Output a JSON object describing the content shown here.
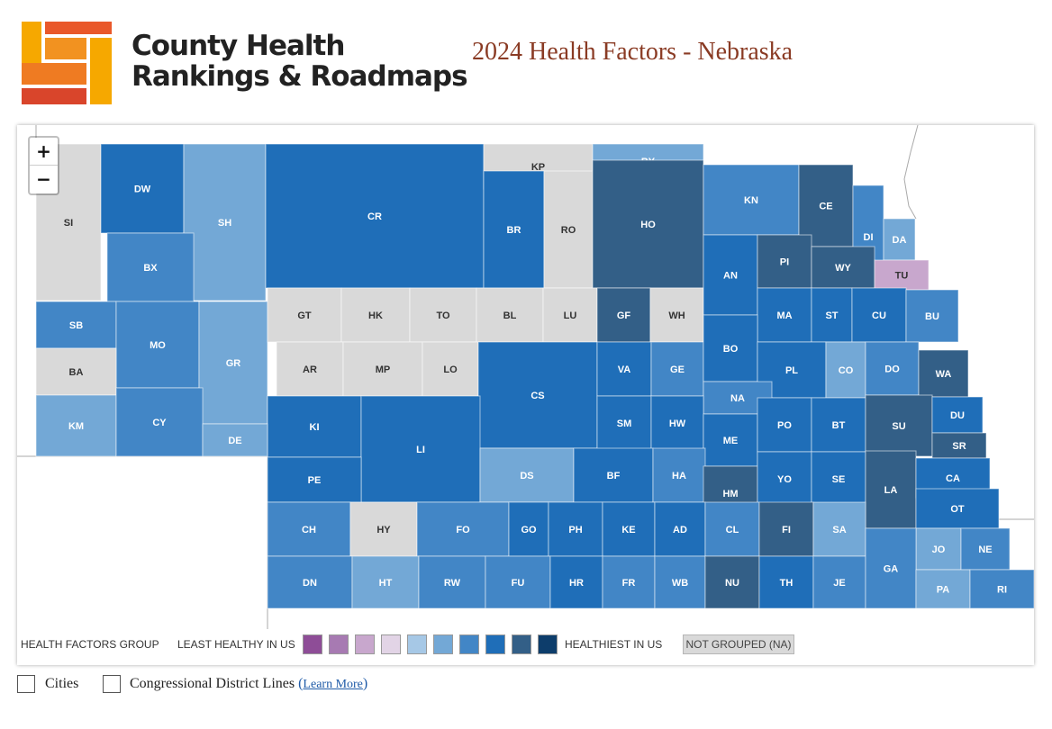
{
  "header": {
    "logo_line1": "County Health",
    "logo_line2": "Rankings & Roadmaps",
    "title": "2024 Health Factors - Nebraska"
  },
  "colors": {
    "healthiest": "#0d3d6b",
    "c9": "#335f87",
    "c8": "#1f6eb8",
    "c7": "#4286c6",
    "c6": "#73a8d6",
    "c5": "#a6c8e6",
    "l4": "#e2d4e6",
    "l3": "#c8a7cd",
    "l2": "#a77ab2",
    "least": "#8e4d97",
    "na": "#d9d9d9"
  },
  "map": {
    "zoom_in": "+",
    "zoom_out": "−",
    "counties": [
      {
        "abbr": "SI",
        "group": "na"
      },
      {
        "abbr": "DW",
        "group": "c8"
      },
      {
        "abbr": "SH",
        "group": "c6"
      },
      {
        "abbr": "CR",
        "group": "c8"
      },
      {
        "abbr": "KP",
        "group": "na"
      },
      {
        "abbr": "BY",
        "group": "c6"
      },
      {
        "abbr": "BR",
        "group": "c8"
      },
      {
        "abbr": "RO",
        "group": "na"
      },
      {
        "abbr": "HO",
        "group": "c9"
      },
      {
        "abbr": "KN",
        "group": "c7"
      },
      {
        "abbr": "CE",
        "group": "c9"
      },
      {
        "abbr": "DI",
        "group": "c7"
      },
      {
        "abbr": "DA",
        "group": "c6"
      },
      {
        "abbr": "BX",
        "group": "c7"
      },
      {
        "abbr": "SB",
        "group": "c7"
      },
      {
        "abbr": "MO",
        "group": "c7"
      },
      {
        "abbr": "GR",
        "group": "c6"
      },
      {
        "abbr": "GT",
        "group": "na"
      },
      {
        "abbr": "HK",
        "group": "na"
      },
      {
        "abbr": "TO",
        "group": "na"
      },
      {
        "abbr": "BL",
        "group": "na"
      },
      {
        "abbr": "LU",
        "group": "na"
      },
      {
        "abbr": "GF",
        "group": "c9"
      },
      {
        "abbr": "WH",
        "group": "na"
      },
      {
        "abbr": "AN",
        "group": "c8"
      },
      {
        "abbr": "PI",
        "group": "c9"
      },
      {
        "abbr": "WY",
        "group": "c9"
      },
      {
        "abbr": "TU",
        "group": "l3"
      },
      {
        "abbr": "MA",
        "group": "c8"
      },
      {
        "abbr": "ST",
        "group": "c8"
      },
      {
        "abbr": "CU",
        "group": "c8"
      },
      {
        "abbr": "BU",
        "group": "c7"
      },
      {
        "abbr": "BA",
        "group": "na"
      },
      {
        "abbr": "AR",
        "group": "na"
      },
      {
        "abbr": "MP",
        "group": "na"
      },
      {
        "abbr": "LO",
        "group": "na"
      },
      {
        "abbr": "CS",
        "group": "c8"
      },
      {
        "abbr": "VA",
        "group": "c8"
      },
      {
        "abbr": "GE",
        "group": "c7"
      },
      {
        "abbr": "BO",
        "group": "c8"
      },
      {
        "abbr": "PL",
        "group": "c8"
      },
      {
        "abbr": "CO",
        "group": "c6"
      },
      {
        "abbr": "DO",
        "group": "c7"
      },
      {
        "abbr": "WA",
        "group": "c9"
      },
      {
        "abbr": "NA",
        "group": "c7"
      },
      {
        "abbr": "KM",
        "group": "c6"
      },
      {
        "abbr": "CY",
        "group": "c7"
      },
      {
        "abbr": "KI",
        "group": "c8"
      },
      {
        "abbr": "LI",
        "group": "c8"
      },
      {
        "abbr": "SM",
        "group": "c8"
      },
      {
        "abbr": "HW",
        "group": "c8"
      },
      {
        "abbr": "ME",
        "group": "c8"
      },
      {
        "abbr": "PO",
        "group": "c8"
      },
      {
        "abbr": "BT",
        "group": "c8"
      },
      {
        "abbr": "SU",
        "group": "c9"
      },
      {
        "abbr": "DU",
        "group": "c8"
      },
      {
        "abbr": "SR",
        "group": "c9"
      },
      {
        "abbr": "DE",
        "group": "c6"
      },
      {
        "abbr": "PE",
        "group": "c8"
      },
      {
        "abbr": "DS",
        "group": "c6"
      },
      {
        "abbr": "BF",
        "group": "c8"
      },
      {
        "abbr": "HA",
        "group": "c7"
      },
      {
        "abbr": "HM",
        "group": "c9"
      },
      {
        "abbr": "YO",
        "group": "c8"
      },
      {
        "abbr": "SE",
        "group": "c8"
      },
      {
        "abbr": "LA",
        "group": "c9"
      },
      {
        "abbr": "CA",
        "group": "c8"
      },
      {
        "abbr": "CH",
        "group": "c7"
      },
      {
        "abbr": "HY",
        "group": "na"
      },
      {
        "abbr": "FO",
        "group": "c7"
      },
      {
        "abbr": "GO",
        "group": "c8"
      },
      {
        "abbr": "PH",
        "group": "c8"
      },
      {
        "abbr": "KE",
        "group": "c8"
      },
      {
        "abbr": "AD",
        "group": "c8"
      },
      {
        "abbr": "CL",
        "group": "c7"
      },
      {
        "abbr": "FI",
        "group": "c9"
      },
      {
        "abbr": "SA",
        "group": "c6"
      },
      {
        "abbr": "OT",
        "group": "c8"
      },
      {
        "abbr": "JO",
        "group": "c6"
      },
      {
        "abbr": "NE",
        "group": "c7"
      },
      {
        "abbr": "DN",
        "group": "c7"
      },
      {
        "abbr": "HT",
        "group": "c6"
      },
      {
        "abbr": "RW",
        "group": "c7"
      },
      {
        "abbr": "FU",
        "group": "c7"
      },
      {
        "abbr": "HR",
        "group": "c8"
      },
      {
        "abbr": "FR",
        "group": "c7"
      },
      {
        "abbr": "WB",
        "group": "c7"
      },
      {
        "abbr": "NU",
        "group": "c9"
      },
      {
        "abbr": "TH",
        "group": "c8"
      },
      {
        "abbr": "JE",
        "group": "c7"
      },
      {
        "abbr": "GA",
        "group": "c7"
      },
      {
        "abbr": "PA",
        "group": "c6"
      },
      {
        "abbr": "RI",
        "group": "c7"
      }
    ]
  },
  "legend": {
    "group_label": "HEALTH FACTORS GROUP",
    "least_label": "LEAST HEALTHY IN US",
    "healthiest_label": "HEALTHIEST IN US",
    "na_label": "NOT GROUPED (NA)",
    "swatches": [
      "least",
      "l2",
      "l3",
      "l4",
      "c5",
      "c6",
      "c7",
      "c8",
      "c9",
      "healthiest"
    ]
  },
  "controls": {
    "cities_label": "Cities",
    "cd_label": "Congressional District Lines",
    "learn_more": "Learn More"
  }
}
